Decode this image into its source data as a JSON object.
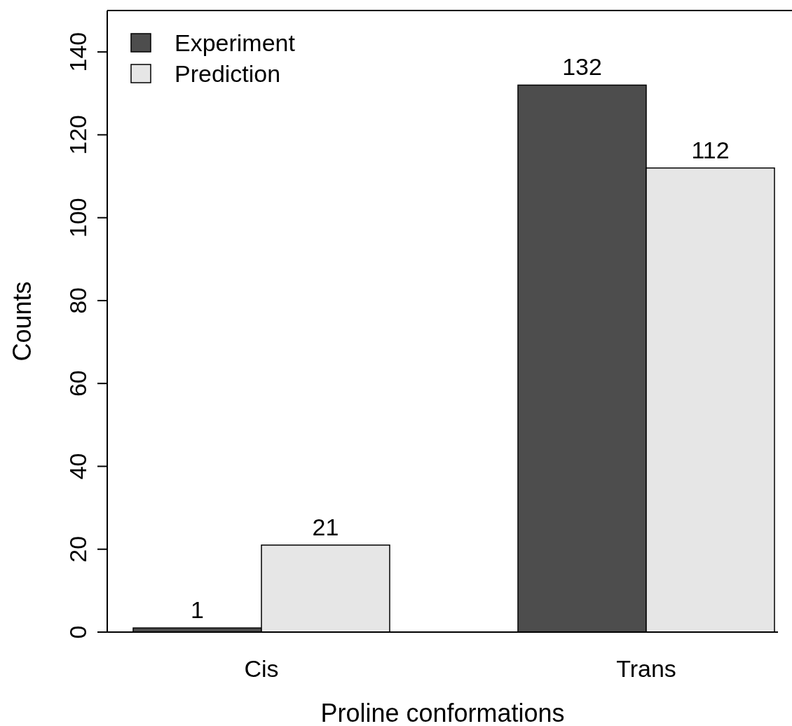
{
  "chart_data": {
    "type": "bar",
    "xlabel": "Proline conformations",
    "ylabel": "Counts",
    "categories": [
      "Cis",
      "Trans"
    ],
    "series": [
      {
        "name": "Experiment",
        "color": "#4d4d4d",
        "values": [
          1,
          132
        ]
      },
      {
        "name": "Prediction",
        "color": "#e6e6e6",
        "values": [
          21,
          112
        ]
      }
    ],
    "ylim": [
      0,
      150
    ],
    "yticks": [
      0,
      20,
      40,
      60,
      80,
      100,
      120,
      140
    ],
    "data_labels": true,
    "legend": "top left",
    "grid": false
  }
}
